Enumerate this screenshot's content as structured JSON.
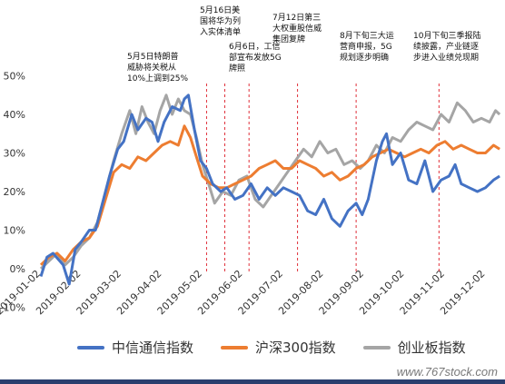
{
  "chart_data": {
    "type": "line",
    "x_ticks": [
      "2019-01-02",
      "2019-02-02",
      "2019-03-02",
      "2019-04-02",
      "2019-05-02",
      "2019-06-02",
      "2019-07-02",
      "2019-08-02",
      "2019-09-02",
      "2019-10-02",
      "2019-11-02",
      "2019-12-02"
    ],
    "y_tick_labels": [
      "-10%",
      "0%",
      "10%",
      "20%",
      "30%",
      "40%",
      "50%"
    ],
    "ylim": [
      -10,
      50
    ],
    "grid": false,
    "legend_position": "bottom",
    "series": [
      {
        "name": "中信通信指数",
        "color": "#4472C4",
        "points": [
          [
            0,
            -2
          ],
          [
            0.15,
            3
          ],
          [
            0.3,
            4
          ],
          [
            0.55,
            1
          ],
          [
            0.7,
            -4
          ],
          [
            0.85,
            5
          ],
          [
            1.0,
            7
          ],
          [
            1.2,
            10
          ],
          [
            1.35,
            10
          ],
          [
            1.55,
            18
          ],
          [
            1.7,
            24
          ],
          [
            1.9,
            31
          ],
          [
            2.05,
            33
          ],
          [
            2.25,
            40
          ],
          [
            2.4,
            36
          ],
          [
            2.6,
            39
          ],
          [
            2.75,
            38
          ],
          [
            2.9,
            33
          ],
          [
            3.05,
            38
          ],
          [
            3.25,
            42
          ],
          [
            3.45,
            41
          ],
          [
            3.55,
            44
          ],
          [
            3.65,
            45
          ],
          [
            3.8,
            36
          ],
          [
            3.95,
            28
          ],
          [
            4.1,
            26
          ],
          [
            4.25,
            22
          ],
          [
            4.45,
            20
          ],
          [
            4.6,
            21
          ],
          [
            4.8,
            18
          ],
          [
            5.0,
            19
          ],
          [
            5.2,
            22
          ],
          [
            5.4,
            18
          ],
          [
            5.6,
            21
          ],
          [
            5.8,
            19
          ],
          [
            6.0,
            21
          ],
          [
            6.2,
            20
          ],
          [
            6.4,
            19
          ],
          [
            6.6,
            15
          ],
          [
            6.8,
            14
          ],
          [
            7.0,
            18
          ],
          [
            7.2,
            13
          ],
          [
            7.4,
            11
          ],
          [
            7.6,
            15
          ],
          [
            7.8,
            17
          ],
          [
            7.95,
            14
          ],
          [
            8.1,
            18
          ],
          [
            8.3,
            28
          ],
          [
            8.45,
            33
          ],
          [
            8.55,
            35
          ],
          [
            8.7,
            27
          ],
          [
            8.9,
            30
          ],
          [
            9.1,
            23
          ],
          [
            9.3,
            22
          ],
          [
            9.5,
            28
          ],
          [
            9.7,
            20
          ],
          [
            9.9,
            23
          ],
          [
            10.1,
            24
          ],
          [
            10.25,
            27
          ],
          [
            10.4,
            22
          ],
          [
            10.6,
            21
          ],
          [
            10.8,
            20
          ],
          [
            11.0,
            21
          ],
          [
            11.2,
            23
          ],
          [
            11.35,
            24
          ]
        ]
      },
      {
        "name": "沪深300指数",
        "color": "#ED7D31",
        "points": [
          [
            0,
            1
          ],
          [
            0.2,
            3
          ],
          [
            0.4,
            4
          ],
          [
            0.6,
            2
          ],
          [
            0.8,
            5
          ],
          [
            1.0,
            7
          ],
          [
            1.2,
            8
          ],
          [
            1.4,
            11
          ],
          [
            1.6,
            18
          ],
          [
            1.8,
            25
          ],
          [
            2.0,
            27
          ],
          [
            2.2,
            26
          ],
          [
            2.4,
            29
          ],
          [
            2.6,
            28
          ],
          [
            2.8,
            30
          ],
          [
            3.0,
            32
          ],
          [
            3.2,
            33
          ],
          [
            3.4,
            32
          ],
          [
            3.55,
            37
          ],
          [
            3.7,
            34
          ],
          [
            3.85,
            29
          ],
          [
            4.0,
            24
          ],
          [
            4.2,
            22
          ],
          [
            4.4,
            21
          ],
          [
            4.6,
            21
          ],
          [
            4.8,
            22
          ],
          [
            5.0,
            23
          ],
          [
            5.2,
            24
          ],
          [
            5.4,
            26
          ],
          [
            5.6,
            27
          ],
          [
            5.8,
            28
          ],
          [
            6.0,
            26
          ],
          [
            6.2,
            26
          ],
          [
            6.4,
            28
          ],
          [
            6.6,
            27
          ],
          [
            6.8,
            26
          ],
          [
            7.0,
            24
          ],
          [
            7.2,
            25
          ],
          [
            7.4,
            23
          ],
          [
            7.6,
            24
          ],
          [
            7.8,
            26
          ],
          [
            8.0,
            27
          ],
          [
            8.2,
            29
          ],
          [
            8.4,
            30
          ],
          [
            8.6,
            31
          ],
          [
            8.8,
            30
          ],
          [
            9.0,
            29
          ],
          [
            9.2,
            30
          ],
          [
            9.4,
            31
          ],
          [
            9.6,
            30
          ],
          [
            9.8,
            32
          ],
          [
            10.0,
            33
          ],
          [
            10.2,
            31
          ],
          [
            10.4,
            32
          ],
          [
            10.6,
            31
          ],
          [
            10.8,
            30
          ],
          [
            11.0,
            30
          ],
          [
            11.2,
            32
          ],
          [
            11.35,
            31
          ]
        ]
      },
      {
        "name": "创业板指数",
        "color": "#A5A5A5",
        "points": [
          [
            0,
            0
          ],
          [
            0.2,
            2
          ],
          [
            0.4,
            4
          ],
          [
            0.6,
            1
          ],
          [
            0.8,
            3
          ],
          [
            1.0,
            6
          ],
          [
            1.2,
            8
          ],
          [
            1.4,
            12
          ],
          [
            1.6,
            20
          ],
          [
            1.8,
            28
          ],
          [
            2.0,
            35
          ],
          [
            2.2,
            41
          ],
          [
            2.35,
            35
          ],
          [
            2.5,
            42
          ],
          [
            2.65,
            38
          ],
          [
            2.8,
            35
          ],
          [
            2.95,
            41
          ],
          [
            3.1,
            45
          ],
          [
            3.25,
            40
          ],
          [
            3.4,
            44
          ],
          [
            3.55,
            41
          ],
          [
            3.7,
            40
          ],
          [
            3.85,
            34
          ],
          [
            4.0,
            27
          ],
          [
            4.15,
            22
          ],
          [
            4.3,
            17
          ],
          [
            4.5,
            20
          ],
          [
            4.7,
            19
          ],
          [
            4.9,
            23
          ],
          [
            5.1,
            24
          ],
          [
            5.3,
            18
          ],
          [
            5.5,
            16
          ],
          [
            5.7,
            19
          ],
          [
            5.9,
            22
          ],
          [
            6.1,
            25
          ],
          [
            6.3,
            28
          ],
          [
            6.5,
            31
          ],
          [
            6.7,
            29
          ],
          [
            6.9,
            33
          ],
          [
            7.1,
            30
          ],
          [
            7.3,
            31
          ],
          [
            7.5,
            27
          ],
          [
            7.7,
            28
          ],
          [
            7.9,
            26
          ],
          [
            8.1,
            28
          ],
          [
            8.3,
            32
          ],
          [
            8.5,
            30
          ],
          [
            8.7,
            34
          ],
          [
            8.9,
            33
          ],
          [
            9.1,
            36
          ],
          [
            9.3,
            38
          ],
          [
            9.5,
            37
          ],
          [
            9.7,
            36
          ],
          [
            9.9,
            40
          ],
          [
            10.1,
            38
          ],
          [
            10.3,
            43
          ],
          [
            10.5,
            41
          ],
          [
            10.7,
            38
          ],
          [
            10.9,
            39
          ],
          [
            11.1,
            38
          ],
          [
            11.25,
            41
          ],
          [
            11.35,
            40
          ]
        ]
      }
    ],
    "annotations": [
      {
        "text": "5月5日特朗普\n威胁将关税从\n10%上调到25%",
        "x": 4.1
      },
      {
        "text": "5月16日美\n国将华为列\n入实体清单",
        "x": 4.55
      },
      {
        "text": "6月6日，工信\n部宣布发放5G\n牌照",
        "x": 5.15
      },
      {
        "text": "7月12日第三\n大权重股信威\n集团复牌",
        "x": 6.35
      },
      {
        "text": "8月下旬三大运\n营商申报，5G\n规划逐步明确",
        "x": 7.8
      },
      {
        "text": "10月下旬三季报陆\n续披露，产业链逐\n步进入业绩兑现期",
        "x": 9.85
      }
    ]
  },
  "watermark": "www.767stock.com"
}
